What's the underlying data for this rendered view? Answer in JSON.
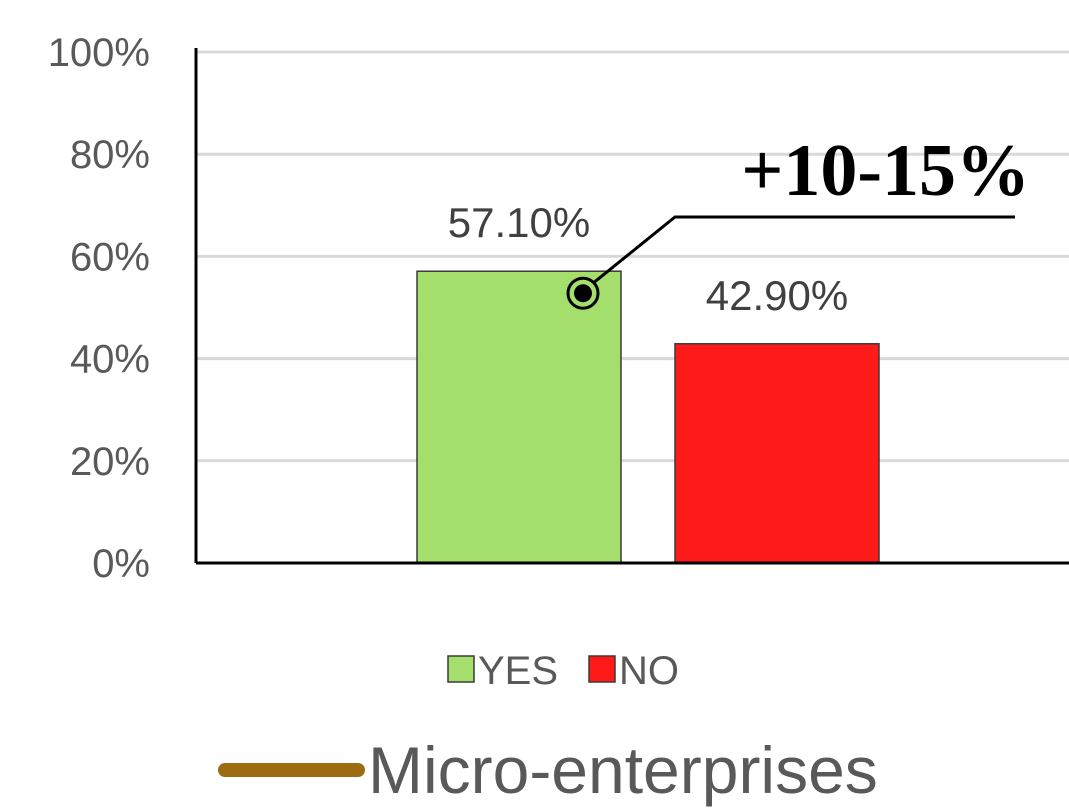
{
  "chart_data": {
    "type": "bar",
    "categories": [
      "YES",
      "NO"
    ],
    "values": [
      57.1,
      42.9
    ],
    "data_labels": [
      "57.10%",
      "42.90%"
    ],
    "colors": [
      "#a4de6c",
      "#ff1a1a"
    ],
    "ylim": [
      0,
      100
    ],
    "yticks": [
      0,
      20,
      40,
      60,
      80,
      100
    ],
    "ytick_labels": [
      "0%",
      "20%",
      "40%",
      "60%",
      "80%",
      "100%"
    ],
    "grid": true,
    "legend": {
      "placement": "bottom",
      "entries": [
        {
          "label": "YES",
          "color": "#a4de6c"
        },
        {
          "label": "NO",
          "color": "#ff1a1a"
        }
      ]
    },
    "annotation": {
      "text": "+10-15%",
      "points_to": "YES"
    },
    "caption": {
      "text": "Micro-enterprises",
      "line_color": "#9c6b12"
    }
  }
}
